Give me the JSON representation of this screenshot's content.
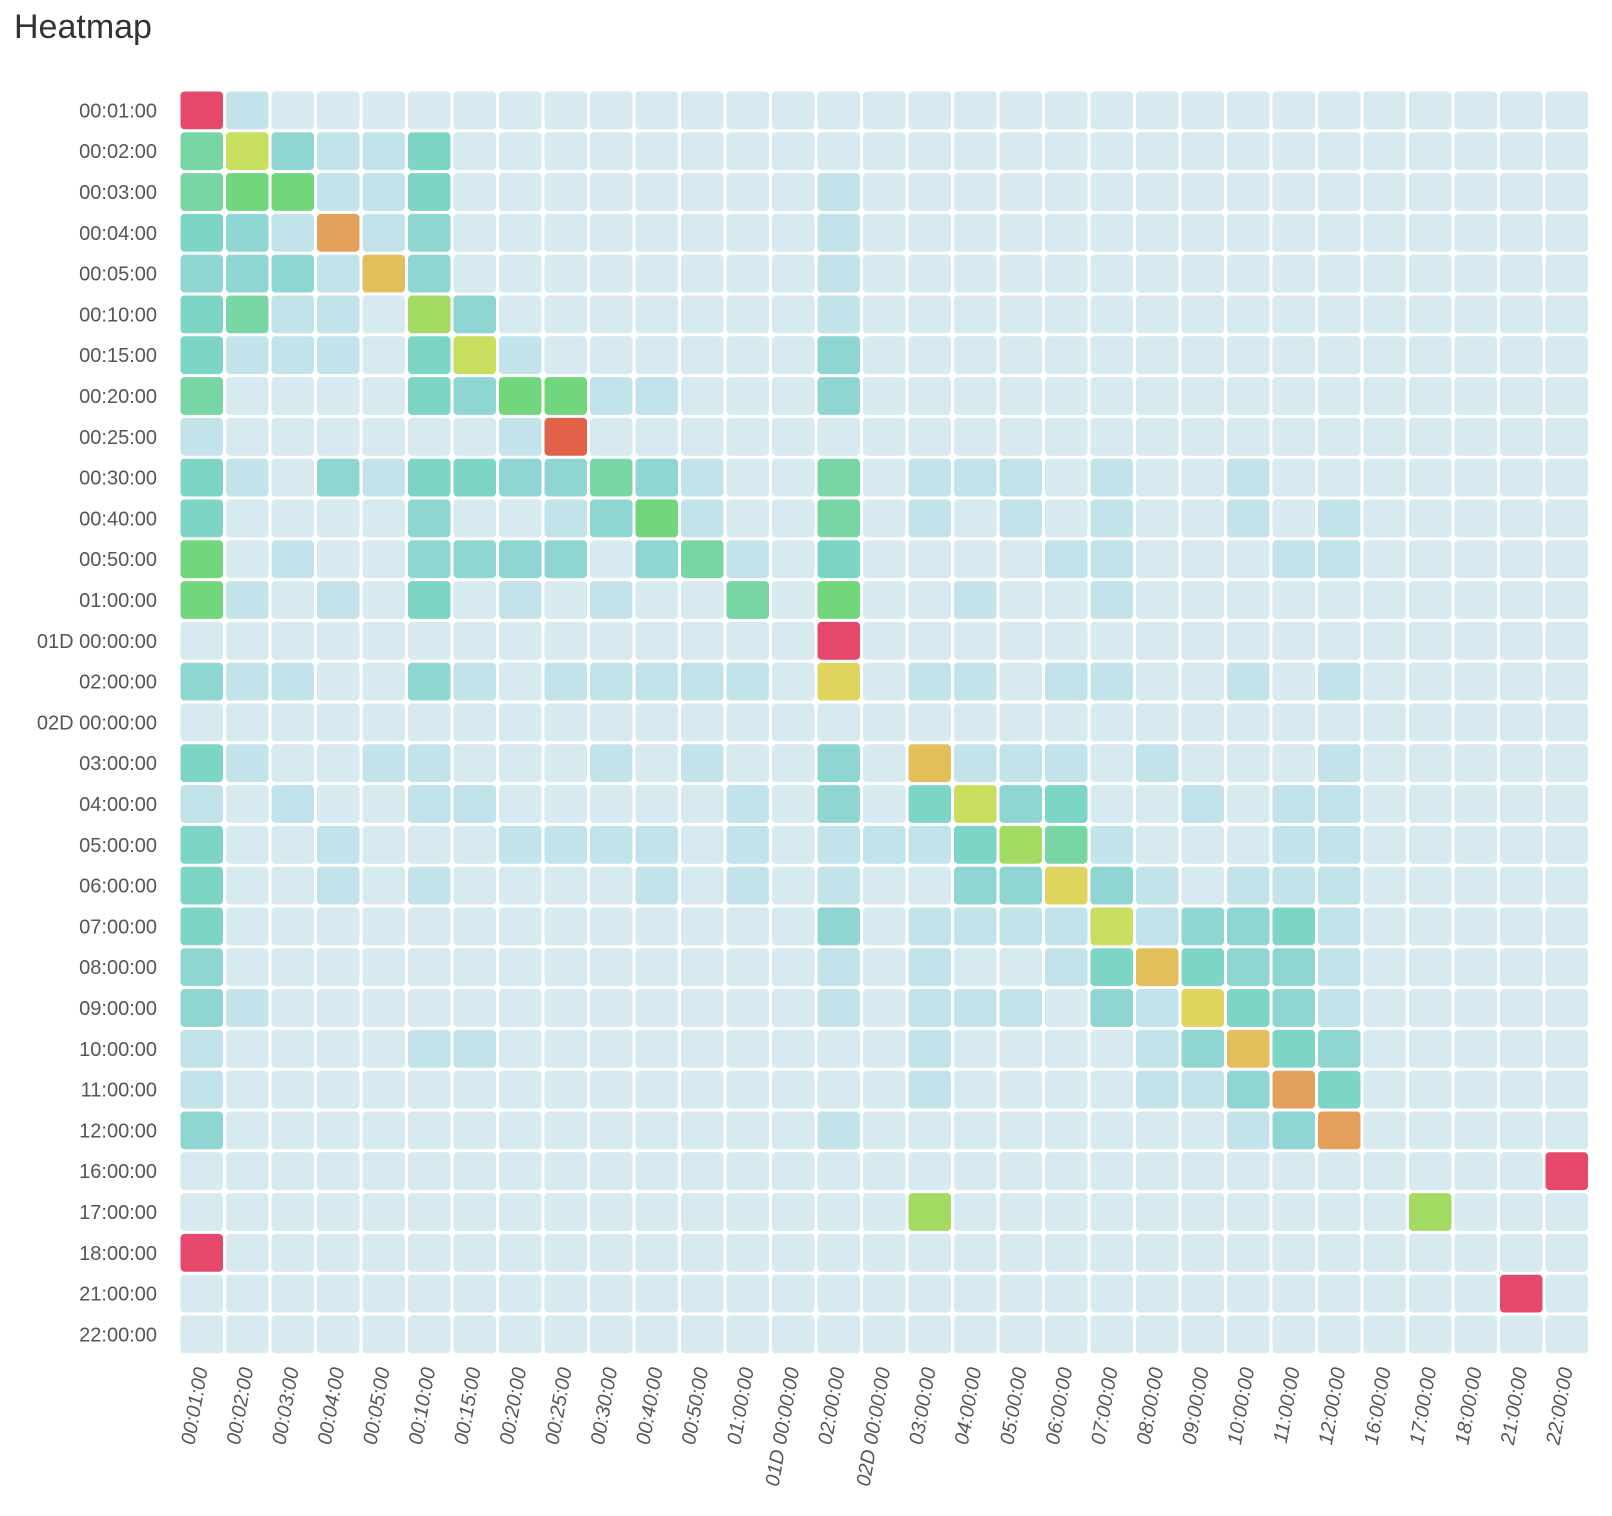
{
  "chart_data": {
    "type": "heatmap",
    "title": "Heatmap",
    "xlabel": "",
    "ylabel": "",
    "x_categories": [
      "00:01:00",
      "00:02:00",
      "00:03:00",
      "00:04:00",
      "00:05:00",
      "00:10:00",
      "00:15:00",
      "00:20:00",
      "00:25:00",
      "00:30:00",
      "00:40:00",
      "00:50:00",
      "01:00:00",
      "01D 00:00:00",
      "02:00:00",
      "02D 00:00:00",
      "03:00:00",
      "04:00:00",
      "05:00:00",
      "06:00:00",
      "07:00:00",
      "08:00:00",
      "09:00:00",
      "10:00:00",
      "11:00:00",
      "12:00:00",
      "16:00:00",
      "17:00:00",
      "18:00:00",
      "21:00:00",
      "22:00:00"
    ],
    "y_categories": [
      "00:01:00",
      "00:02:00",
      "00:03:00",
      "00:04:00",
      "00:05:00",
      "00:10:00",
      "00:15:00",
      "00:20:00",
      "00:25:00",
      "00:30:00",
      "00:40:00",
      "00:50:00",
      "01:00:00",
      "01D 00:00:00",
      "02:00:00",
      "02D 00:00:00",
      "03:00:00",
      "04:00:00",
      "05:00:00",
      "06:00:00",
      "07:00:00",
      "08:00:00",
      "09:00:00",
      "10:00:00",
      "11:00:00",
      "12:00:00",
      "16:00:00",
      "17:00:00",
      "18:00:00",
      "21:00:00",
      "22:00:00"
    ],
    "value_range": [
      0,
      1
    ],
    "color_scale": [
      "#d6eaf0",
      "#c3e3ea",
      "#ade0e3",
      "#8fd6d3",
      "#7dd5c6",
      "#78d6a4",
      "#72d67c",
      "#a3db62",
      "#c8de5e",
      "#dfd45e",
      "#e3bf5c",
      "#e3a05a",
      "#e26149",
      "#e5486a"
    ],
    "values": [
      [
        1,
        0.05,
        0.02,
        0.02,
        0.02,
        0.02,
        0.02,
        0.02,
        0.02,
        0.02,
        0.02,
        0.02,
        0.02,
        0.02,
        0.02,
        0.02,
        0.02,
        0.02,
        0.02,
        0.02,
        0.02,
        0.02,
        0.02,
        0.02,
        0.02,
        0.02,
        0.02,
        0.02,
        0.02,
        0.02,
        0.02
      ],
      [
        0.4,
        0.6,
        0.2,
        0.05,
        0.05,
        0.32,
        0.02,
        0.02,
        0.02,
        0.02,
        0.02,
        0.02,
        0.02,
        0.02,
        0.02,
        0.02,
        0.02,
        0.02,
        0.02,
        0.02,
        0.02,
        0.02,
        0.02,
        0.02,
        0.02,
        0.02,
        0.02,
        0.02,
        0.02,
        0.02,
        0.02
      ],
      [
        0.4,
        0.46,
        0.46,
        0.05,
        0.05,
        0.32,
        0.02,
        0.02,
        0.02,
        0.02,
        0.02,
        0.02,
        0.02,
        0.02,
        0.1,
        0.02,
        0.02,
        0.02,
        0.02,
        0.02,
        0.02,
        0.02,
        0.02,
        0.02,
        0.02,
        0.02,
        0.02,
        0.02,
        0.02,
        0.02,
        0.02
      ],
      [
        0.32,
        0.2,
        0.08,
        0.86,
        0.05,
        0.2,
        0.02,
        0.02,
        0.02,
        0.02,
        0.02,
        0.02,
        0.02,
        0.02,
        0.05,
        0.02,
        0.02,
        0.02,
        0.02,
        0.02,
        0.02,
        0.02,
        0.02,
        0.02,
        0.02,
        0.02,
        0.02,
        0.02,
        0.02,
        0.02,
        0.02
      ],
      [
        0.26,
        0.2,
        0.2,
        0.1,
        0.75,
        0.26,
        0.02,
        0.02,
        0.02,
        0.02,
        0.02,
        0.02,
        0.02,
        0.02,
        0.08,
        0.02,
        0.02,
        0.02,
        0.02,
        0.02,
        0.02,
        0.02,
        0.02,
        0.02,
        0.02,
        0.02,
        0.02,
        0.02,
        0.02,
        0.02,
        0.02
      ],
      [
        0.32,
        0.4,
        0.05,
        0.05,
        0.02,
        0.55,
        0.26,
        0.02,
        0.02,
        0.02,
        0.02,
        0.02,
        0.02,
        0.02,
        0.1,
        0.02,
        0.02,
        0.02,
        0.02,
        0.02,
        0.02,
        0.02,
        0.02,
        0.02,
        0.02,
        0.02,
        0.02,
        0.02,
        0.02,
        0.02,
        0.02
      ],
      [
        0.32,
        0.05,
        0.1,
        0.05,
        0.02,
        0.32,
        0.6,
        0.1,
        0.02,
        0.02,
        0.02,
        0.02,
        0.02,
        0.02,
        0.2,
        0.02,
        0.02,
        0.02,
        0.02,
        0.02,
        0.02,
        0.02,
        0.02,
        0.02,
        0.02,
        0.02,
        0.02,
        0.02,
        0.02,
        0.02,
        0.02
      ],
      [
        0.36,
        0.02,
        0.02,
        0.02,
        0.02,
        0.3,
        0.2,
        0.44,
        0.44,
        0.05,
        0.05,
        0.02,
        0.02,
        0.02,
        0.26,
        0.02,
        0.02,
        0.02,
        0.02,
        0.02,
        0.02,
        0.02,
        0.02,
        0.02,
        0.02,
        0.02,
        0.02,
        0.02,
        0.02,
        0.02,
        0.02
      ],
      [
        0.05,
        0.02,
        0.02,
        0.02,
        0.02,
        0.02,
        0.02,
        0.08,
        0.93,
        0.02,
        0.02,
        0.02,
        0.02,
        0.02,
        0.02,
        0.02,
        0.02,
        0.02,
        0.02,
        0.02,
        0.02,
        0.02,
        0.02,
        0.02,
        0.02,
        0.02,
        0.02,
        0.02,
        0.02,
        0.02,
        0.02
      ],
      [
        0.3,
        0.05,
        0.02,
        0.2,
        0.05,
        0.3,
        0.3,
        0.26,
        0.2,
        0.36,
        0.2,
        0.05,
        0.02,
        0.02,
        0.36,
        0.02,
        0.05,
        0.1,
        0.05,
        0.02,
        0.05,
        0.02,
        0.02,
        0.05,
        0.02,
        0.02,
        0.02,
        0.02,
        0.02,
        0.02,
        0.02
      ],
      [
        0.3,
        0.02,
        0.02,
        0.02,
        0.02,
        0.26,
        0.02,
        0.02,
        0.05,
        0.2,
        0.48,
        0.1,
        0.02,
        0.02,
        0.4,
        0.02,
        0.1,
        0.02,
        0.1,
        0.02,
        0.05,
        0.02,
        0.02,
        0.1,
        0.02,
        0.1,
        0.02,
        0.02,
        0.02,
        0.02,
        0.02
      ],
      [
        0.46,
        0.02,
        0.1,
        0.02,
        0.02,
        0.2,
        0.2,
        0.2,
        0.26,
        0.02,
        0.2,
        0.36,
        0.1,
        0.02,
        0.3,
        0.02,
        0.02,
        0.02,
        0.02,
        0.1,
        0.1,
        0.02,
        0.02,
        0.02,
        0.1,
        0.1,
        0.02,
        0.02,
        0.02,
        0.02,
        0.02
      ],
      [
        0.44,
        0.05,
        0.02,
        0.05,
        0.02,
        0.32,
        0.02,
        0.05,
        0.02,
        0.05,
        0.02,
        0.02,
        0.38,
        0.02,
        0.48,
        0.02,
        0.02,
        0.05,
        0.02,
        0.02,
        0.05,
        0.02,
        0.02,
        0.02,
        0.02,
        0.02,
        0.02,
        0.02,
        0.02,
        0.02,
        0.02
      ],
      [
        0.02,
        0.02,
        0.02,
        0.02,
        0.02,
        0.02,
        0.02,
        0.02,
        0.02,
        0.02,
        0.02,
        0.02,
        0.02,
        0.02,
        1,
        0.02,
        0.02,
        0.02,
        0.02,
        0.02,
        0.02,
        0.02,
        0.02,
        0.02,
        0.02,
        0.02,
        0.02,
        0.02,
        0.02,
        0.02,
        0.02
      ],
      [
        0.2,
        0.05,
        0.05,
        0.02,
        0.02,
        0.2,
        0.05,
        0.02,
        0.05,
        0.05,
        0.05,
        0.1,
        0.1,
        0.02,
        0.7,
        0.02,
        0.1,
        0.05,
        0.02,
        0.05,
        0.05,
        0.02,
        0.02,
        0.05,
        0.02,
        0.05,
        0.02,
        0.02,
        0.02,
        0.02,
        0.02
      ],
      [
        0.02,
        0.02,
        0.02,
        0.02,
        0.02,
        0.02,
        0.02,
        0.02,
        0.02,
        0.02,
        0.02,
        0.02,
        0.02,
        0.02,
        0.02,
        0.02,
        0.02,
        0.02,
        0.02,
        0.02,
        0.02,
        0.02,
        0.02,
        0.02,
        0.02,
        0.02,
        0.02,
        0.02,
        0.02,
        0.02,
        0.02
      ],
      [
        0.3,
        0.05,
        0.02,
        0.02,
        0.05,
        0.05,
        0.02,
        0.02,
        0.02,
        0.05,
        0.02,
        0.05,
        0.02,
        0.02,
        0.26,
        0.02,
        0.76,
        0.1,
        0.05,
        0.05,
        0.02,
        0.05,
        0.02,
        0.02,
        0.02,
        0.1,
        0.02,
        0.02,
        0.02,
        0.02,
        0.02
      ],
      [
        0.1,
        0.02,
        0.05,
        0.02,
        0.02,
        0.05,
        0.05,
        0.02,
        0.02,
        0.02,
        0.02,
        0.02,
        0.05,
        0.02,
        0.2,
        0.02,
        0.32,
        0.6,
        0.26,
        0.32,
        0.02,
        0.02,
        0.05,
        0.02,
        0.1,
        0.05,
        0.02,
        0.02,
        0.02,
        0.02,
        0.02
      ],
      [
        0.32,
        0.02,
        0.02,
        0.05,
        0.02,
        0.02,
        0.02,
        0.05,
        0.05,
        0.05,
        0.05,
        0.02,
        0.05,
        0.02,
        0.05,
        0.05,
        0.1,
        0.32,
        0.54,
        0.36,
        0.05,
        0.02,
        0.02,
        0.02,
        0.1,
        0.05,
        0.02,
        0.02,
        0.02,
        0.02,
        0.02
      ],
      [
        0.32,
        0.02,
        0.02,
        0.05,
        0.02,
        0.05,
        0.02,
        0.02,
        0.02,
        0.02,
        0.05,
        0.02,
        0.05,
        0.02,
        0.05,
        0.02,
        0.02,
        0.2,
        0.26,
        0.72,
        0.2,
        0.05,
        0.02,
        0.1,
        0.1,
        0.1,
        0.02,
        0.02,
        0.02,
        0.02,
        0.02
      ],
      [
        0.32,
        0.02,
        0.02,
        0.02,
        0.02,
        0.02,
        0.02,
        0.02,
        0.02,
        0.02,
        0.02,
        0.02,
        0.02,
        0.02,
        0.2,
        0.02,
        0.1,
        0.05,
        0.05,
        0.1,
        0.6,
        0.05,
        0.2,
        0.2,
        0.3,
        0.05,
        0.02,
        0.02,
        0.02,
        0.02,
        0.02
      ],
      [
        0.2,
        0.02,
        0.02,
        0.02,
        0.02,
        0.02,
        0.02,
        0.02,
        0.02,
        0.02,
        0.02,
        0.02,
        0.02,
        0.02,
        0.1,
        0.02,
        0.05,
        0.02,
        0.02,
        0.05,
        0.3,
        0.74,
        0.3,
        0.2,
        0.2,
        0.05,
        0.02,
        0.02,
        0.02,
        0.02,
        0.02
      ],
      [
        0.26,
        0.05,
        0.02,
        0.02,
        0.02,
        0.02,
        0.02,
        0.02,
        0.02,
        0.02,
        0.02,
        0.02,
        0.02,
        0.02,
        0.05,
        0.02,
        0.05,
        0.1,
        0.05,
        0.02,
        0.26,
        0.1,
        0.68,
        0.32,
        0.2,
        0.1,
        0.02,
        0.02,
        0.02,
        0.02,
        0.02
      ],
      [
        0.1,
        0.02,
        0.02,
        0.02,
        0.02,
        0.05,
        0.05,
        0.02,
        0.02,
        0.02,
        0.02,
        0.02,
        0.02,
        0.02,
        0.02,
        0.02,
        0.05,
        0.02,
        0.02,
        0.02,
        0.02,
        0.05,
        0.26,
        0.78,
        0.3,
        0.2,
        0.02,
        0.02,
        0.02,
        0.02,
        0.02
      ],
      [
        0.1,
        0.02,
        0.02,
        0.02,
        0.02,
        0.02,
        0.02,
        0.02,
        0.02,
        0.02,
        0.02,
        0.02,
        0.02,
        0.02,
        0.02,
        0.02,
        0.05,
        0.02,
        0.02,
        0.02,
        0.02,
        0.1,
        0.1,
        0.2,
        0.82,
        0.3,
        0.02,
        0.02,
        0.02,
        0.02,
        0.02
      ],
      [
        0.26,
        0.02,
        0.02,
        0.02,
        0.02,
        0.02,
        0.02,
        0.02,
        0.02,
        0.02,
        0.02,
        0.02,
        0.02,
        0.02,
        0.05,
        0.02,
        0.02,
        0.02,
        0.02,
        0.02,
        0.02,
        0.02,
        0.02,
        0.1,
        0.2,
        0.86,
        0.02,
        0.02,
        0.02,
        0.02,
        0.02
      ],
      [
        0.02,
        0.02,
        0.02,
        0.02,
        0.02,
        0.02,
        0.02,
        0.02,
        0.02,
        0.02,
        0.02,
        0.02,
        0.02,
        0.02,
        0.02,
        0.02,
        0.02,
        0.02,
        0.02,
        0.02,
        0.02,
        0.02,
        0.02,
        0.02,
        0.02,
        0.02,
        0.02,
        0.02,
        0.02,
        0.02,
        1
      ],
      [
        0.02,
        0.02,
        0.02,
        0.02,
        0.02,
        0.02,
        0.02,
        0.02,
        0.02,
        0.02,
        0.02,
        0.02,
        0.02,
        0.02,
        0.02,
        0.02,
        0.55,
        0.02,
        0.02,
        0.02,
        0.02,
        0.02,
        0.02,
        0.02,
        0.02,
        0.02,
        0.02,
        0.55,
        0.02,
        0.02,
        0.02
      ],
      [
        1,
        0.02,
        0.02,
        0.02,
        0.02,
        0.02,
        0.02,
        0.02,
        0.02,
        0.02,
        0.02,
        0.02,
        0.02,
        0.02,
        0.02,
        0.02,
        0.02,
        0.02,
        0.02,
        0.02,
        0.02,
        0.02,
        0.02,
        0.02,
        0.02,
        0.02,
        0.02,
        0.02,
        0.02,
        0.02,
        0.02
      ],
      [
        0.02,
        0.02,
        0.02,
        0.02,
        0.02,
        0.02,
        0.02,
        0.02,
        0.02,
        0.02,
        0.02,
        0.02,
        0.02,
        0.02,
        0.02,
        0.02,
        0.02,
        0.02,
        0.02,
        0.02,
        0.02,
        0.02,
        0.02,
        0.02,
        0.02,
        0.02,
        0.02,
        0.02,
        0.02,
        1,
        0.02
      ],
      [
        0.02,
        0.02,
        0.02,
        0.02,
        0.02,
        0.02,
        0.02,
        0.02,
        0.02,
        0.02,
        0.02,
        0.02,
        0.02,
        0.02,
        0.02,
        0.02,
        0.02,
        0.02,
        0.02,
        0.02,
        0.02,
        0.02,
        0.02,
        0.02,
        0.02,
        0.02,
        0.02,
        0.02,
        0.02,
        0.02,
        0.02
      ]
    ],
    "grid": false,
    "legend": "none"
  }
}
